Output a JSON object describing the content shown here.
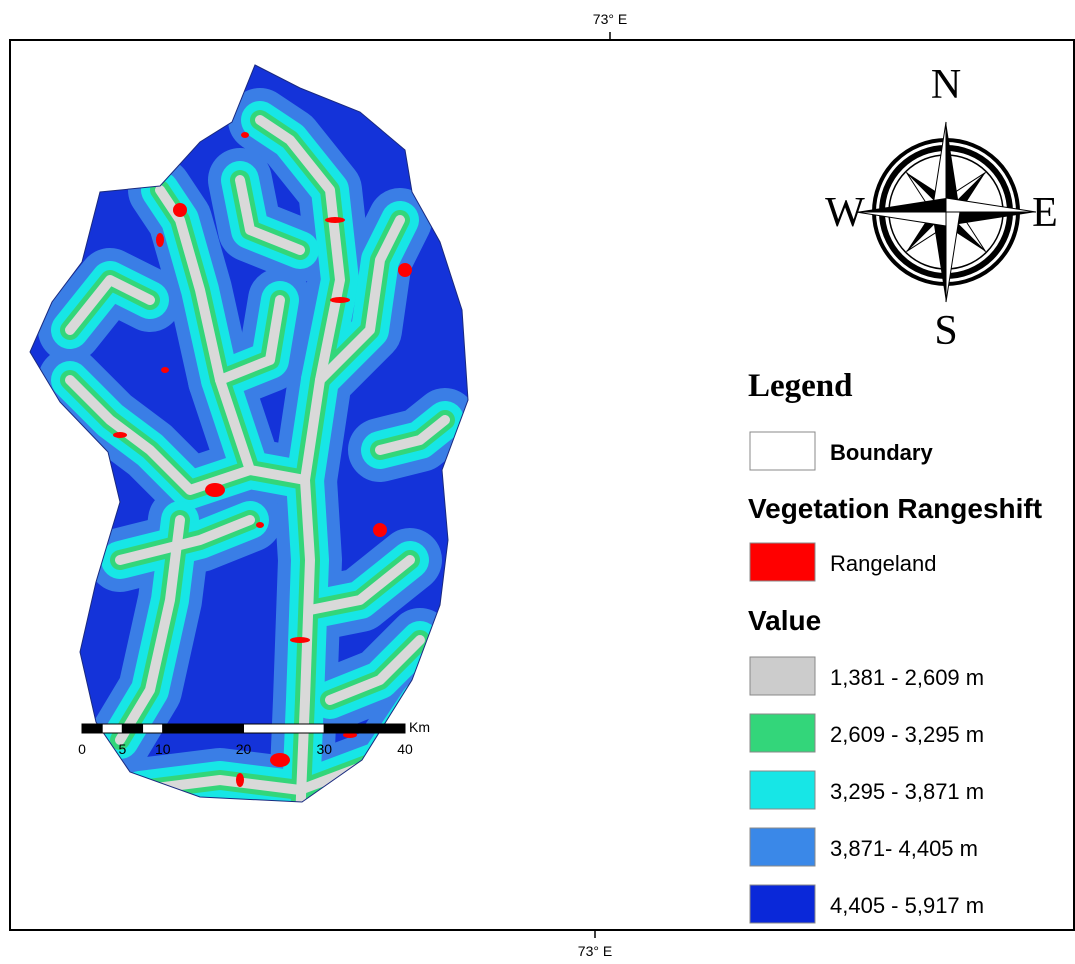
{
  "map": {
    "top_label": "73° E",
    "bottom_label": "73° E",
    "compass": {
      "north": "N",
      "south": "S",
      "west": "W",
      "east": "E"
    },
    "scale_bar": {
      "unit": "Km",
      "labels": [
        "0",
        "5",
        "10",
        "20",
        "30",
        "40"
      ]
    },
    "legend": {
      "title": "Legend",
      "boundary": "Boundary",
      "vegetation_title": "Vegetation Rangeshift",
      "vegetation_items": [
        "Rangeland"
      ],
      "value_title": "Value",
      "value_items": [
        "1,381 - 2,609 m",
        "2,609 - 3,295 m",
        "3,295 - 3,871 m",
        "3,871- 4,405 m",
        "4,405 - 5,917 m"
      ]
    }
  }
}
